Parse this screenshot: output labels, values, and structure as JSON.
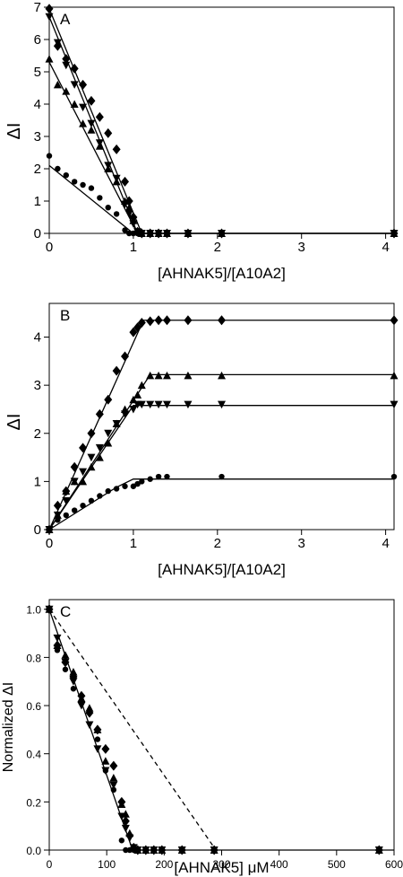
{
  "chart_data": [
    {
      "type": "scatter",
      "panel_label": "A",
      "xlabel": "[AHNAK5]/[A10A2]",
      "ylabel": "ΔI",
      "xlim": [
        0,
        4.1
      ],
      "ylim": [
        0,
        7
      ],
      "xticks": [
        "0",
        "1",
        "2",
        "3",
        "4"
      ],
      "yticks": [
        "0",
        "1",
        "2",
        "3",
        "4",
        "5",
        "6",
        "7"
      ],
      "series": [
        {
          "marker": "diamond",
          "x": [
            0,
            0.1,
            0.2,
            0.3,
            0.4,
            0.5,
            0.6,
            0.7,
            0.8,
            0.9,
            0.95,
            1.0,
            1.05,
            1.1,
            1.2,
            1.3,
            1.4,
            1.65,
            2.05,
            4.1
          ],
          "y": [
            6.95,
            5.8,
            5.4,
            5.1,
            4.6,
            4.1,
            3.6,
            3.1,
            2.6,
            1.6,
            1.0,
            0.5,
            0.05,
            0,
            0,
            0,
            0,
            0,
            0,
            0
          ],
          "fit": {
            "x": [
              0,
              1.1,
              4.1
            ],
            "y": [
              6.95,
              0,
              0
            ]
          }
        },
        {
          "marker": "triangle-down",
          "x": [
            0,
            0.1,
            0.2,
            0.3,
            0.4,
            0.5,
            0.6,
            0.7,
            0.8,
            0.9,
            0.95,
            1.0,
            1.05,
            1.1,
            1.2,
            1.3,
            1.4,
            1.65,
            2.05,
            4.1
          ],
          "y": [
            6.7,
            5.9,
            5.2,
            4.6,
            3.9,
            3.4,
            2.8,
            2.1,
            1.7,
            0.9,
            0.6,
            0.3,
            0.05,
            0,
            0,
            0,
            0,
            0,
            0,
            0
          ],
          "fit": {
            "x": [
              0,
              1.05,
              4.1
            ],
            "y": [
              6.7,
              0,
              0
            ]
          }
        },
        {
          "marker": "triangle-up",
          "x": [
            0,
            0.1,
            0.2,
            0.3,
            0.4,
            0.5,
            0.6,
            0.7,
            0.8,
            0.9,
            0.95,
            1.0,
            1.05,
            1.1,
            1.2,
            1.3,
            1.4,
            1.65,
            2.05,
            4.1
          ],
          "y": [
            5.4,
            4.6,
            4.4,
            4.0,
            3.4,
            3.2,
            2.7,
            2.0,
            1.6,
            1.0,
            0.8,
            0.4,
            0.05,
            0,
            0,
            0,
            0,
            0,
            0,
            0
          ],
          "fit": {
            "x": [
              0,
              1.05,
              4.1
            ],
            "y": [
              5.3,
              0,
              0
            ]
          }
        },
        {
          "marker": "circle",
          "x": [
            0,
            0.1,
            0.2,
            0.3,
            0.4,
            0.5,
            0.6,
            0.7,
            0.8,
            0.9,
            0.95,
            1.0,
            1.05,
            1.1,
            1.2,
            1.3,
            1.4,
            1.65,
            2.05,
            4.1
          ],
          "y": [
            2.4,
            2.0,
            1.8,
            1.6,
            1.5,
            1.4,
            1.1,
            0.8,
            0.6,
            0.1,
            0,
            0,
            0,
            0,
            0,
            0,
            0,
            0,
            0,
            0
          ],
          "fit": {
            "x": [
              0,
              1.0,
              4.1
            ],
            "y": [
              2.1,
              0,
              0
            ]
          }
        }
      ]
    },
    {
      "type": "scatter",
      "panel_label": "B",
      "xlabel": "[AHNAK5]/[A10A2]",
      "ylabel": "ΔI",
      "xlim": [
        0,
        4.1
      ],
      "ylim": [
        0,
        4.7
      ],
      "xticks": [
        "0",
        "1",
        "2",
        "3",
        "4"
      ],
      "yticks": [
        "0",
        "1",
        "2",
        "3",
        "4"
      ],
      "series": [
        {
          "marker": "diamond",
          "x": [
            0,
            0.1,
            0.2,
            0.3,
            0.4,
            0.5,
            0.6,
            0.7,
            0.8,
            0.9,
            1.0,
            1.05,
            1.1,
            1.2,
            1.3,
            1.4,
            1.65,
            2.05,
            4.1
          ],
          "y": [
            0,
            0.5,
            0.8,
            1.3,
            1.7,
            2.0,
            2.4,
            2.7,
            3.3,
            3.6,
            4.1,
            4.2,
            4.3,
            4.33,
            4.35,
            4.35,
            4.35,
            4.35,
            4.35
          ],
          "fit": {
            "x": [
              0,
              1.12,
              4.1
            ],
            "y": [
              0,
              4.35,
              4.35
            ]
          }
        },
        {
          "marker": "triangle-up",
          "x": [
            0,
            0.1,
            0.2,
            0.3,
            0.4,
            0.5,
            0.6,
            0.7,
            0.8,
            0.9,
            1.0,
            1.05,
            1.1,
            1.2,
            1.3,
            1.4,
            1.65,
            2.05,
            4.1
          ],
          "y": [
            0,
            0.3,
            0.8,
            1.0,
            1.0,
            1.3,
            1.5,
            1.8,
            2.2,
            2.5,
            2.7,
            2.8,
            3.0,
            3.2,
            3.2,
            3.2,
            3.2,
            3.2,
            3.2
          ],
          "fit": {
            "x": [
              0,
              1.2,
              4.1
            ],
            "y": [
              0,
              3.22,
              3.22
            ]
          }
        },
        {
          "marker": "triangle-down",
          "x": [
            0,
            0.1,
            0.2,
            0.3,
            0.4,
            0.5,
            0.6,
            0.7,
            0.8,
            0.9,
            1.0,
            1.05,
            1.1,
            1.2,
            1.3,
            1.4,
            1.65,
            2.05,
            4.1
          ],
          "y": [
            0,
            0.3,
            0.6,
            1.0,
            1.2,
            1.5,
            1.7,
            2.0,
            2.2,
            2.4,
            2.5,
            2.6,
            2.6,
            2.6,
            2.6,
            2.6,
            2.6,
            2.6,
            2.6
          ],
          "fit": {
            "x": [
              0,
              1.0,
              4.1
            ],
            "y": [
              0,
              2.58,
              2.58
            ]
          }
        },
        {
          "marker": "circle",
          "x": [
            0,
            0.1,
            0.2,
            0.3,
            0.4,
            0.5,
            0.6,
            0.7,
            0.8,
            0.9,
            1.0,
            1.05,
            1.1,
            1.2,
            1.3,
            1.4,
            2.05,
            4.1
          ],
          "y": [
            0,
            0.2,
            0.3,
            0.4,
            0.5,
            0.6,
            0.7,
            0.8,
            0.85,
            0.9,
            0.9,
            0.95,
            1.0,
            1.05,
            1.1,
            1.1,
            1.1,
            1.1
          ],
          "fit": {
            "x": [
              0,
              0.8,
              1.0,
              4.1
            ],
            "y": [
              0,
              0.88,
              1.05,
              1.05
            ]
          }
        }
      ]
    },
    {
      "type": "scatter",
      "panel_label": "C",
      "xlabel": "[AHNAK5] μM",
      "ylabel": "Normalized  ΔI",
      "xlim": [
        0,
        600
      ],
      "ylim": [
        0,
        1.04
      ],
      "xticks": [
        "0",
        "100",
        "200",
        "300",
        "400",
        "500",
        "600"
      ],
      "yticks": [
        "0.0",
        "0.2",
        "0.4",
        "0.6",
        "0.8",
        "1.0"
      ],
      "series": [
        {
          "marker": "diamond",
          "x": [
            0,
            14,
            28,
            42,
            56,
            70,
            84,
            98,
            112,
            126,
            133,
            140,
            147,
            154,
            168,
            182,
            196,
            231,
            287,
            574
          ],
          "y": [
            1.0,
            0.85,
            0.78,
            0.72,
            0.64,
            0.57,
            0.5,
            0.42,
            0.35,
            0.2,
            0.12,
            0.06,
            0.01,
            0,
            0,
            0,
            0,
            0,
            0,
            0
          ]
        },
        {
          "marker": "triangle-down",
          "x": [
            0,
            14,
            28,
            42,
            56,
            70,
            84,
            98,
            112,
            126,
            133,
            140,
            147,
            154,
            168,
            182,
            196,
            231,
            287,
            574
          ],
          "y": [
            1.0,
            0.88,
            0.78,
            0.7,
            0.6,
            0.52,
            0.42,
            0.33,
            0.27,
            0.14,
            0.09,
            0.05,
            0.01,
            0,
            0,
            0,
            0,
            0,
            0,
            0
          ]
        },
        {
          "marker": "triangle-up",
          "x": [
            0,
            14,
            28,
            42,
            56,
            70,
            84,
            98,
            112,
            126,
            133,
            140,
            147,
            154,
            168,
            182,
            196,
            231,
            287,
            574
          ],
          "y": [
            1.0,
            0.85,
            0.81,
            0.74,
            0.63,
            0.59,
            0.5,
            0.37,
            0.3,
            0.19,
            0.15,
            0.07,
            0.01,
            0,
            0,
            0,
            0,
            0,
            0,
            0
          ]
        },
        {
          "marker": "circle",
          "x": [
            0,
            14,
            28,
            42,
            56,
            70,
            84,
            98,
            112,
            126,
            133,
            140,
            147,
            154,
            168,
            182,
            196,
            231,
            287,
            574
          ],
          "y": [
            1.0,
            0.83,
            0.75,
            0.67,
            0.62,
            0.58,
            0.46,
            0.33,
            0.25,
            0.04,
            0,
            0,
            0,
            0,
            0,
            0,
            0,
            0,
            0,
            0
          ]
        }
      ],
      "fit_line": {
        "x": [
          0,
          145,
          600
        ],
        "y": [
          1.0,
          0,
          0
        ]
      },
      "dashed_line": {
        "x": [
          0,
          290
        ],
        "y": [
          1.0,
          0
        ]
      }
    }
  ]
}
